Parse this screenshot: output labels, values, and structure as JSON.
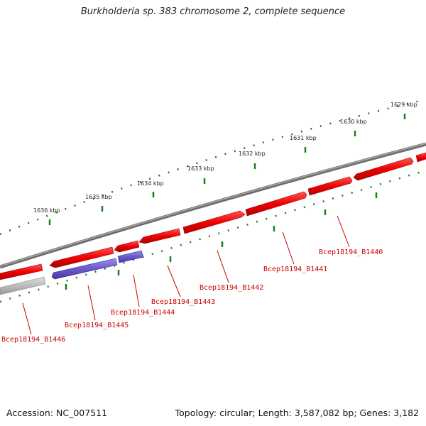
{
  "title": "Burkholderia sp. 383 chromosome 2, complete sequence",
  "footer": {
    "accession": "Accession: NC_007511",
    "summary": "Topology: circular; Length: 3,587,082 bp; Genes: 3,182"
  },
  "colors": {
    "backbone": "#808080",
    "forward_gene": "#ee1111",
    "reverse_gene": "#6a5acd",
    "gray_gene": "#b8b8b8",
    "tick": "#1a7f1a",
    "gene_label": "#cc0000"
  },
  "scale_ticks": [
    {
      "label": "1636 kbp"
    },
    {
      "label": "1635 kbp"
    },
    {
      "label": "1634 kbp"
    },
    {
      "label": "1633 kbp"
    },
    {
      "label": "1632 kbp"
    },
    {
      "label": "1631 kbp"
    },
    {
      "label": "1630 kbp"
    },
    {
      "label": "1629 kbp"
    }
  ],
  "gene_labels": [
    {
      "name": "Bcep18194_B1440"
    },
    {
      "name": "Bcep18194_B1441"
    },
    {
      "name": "Bcep18194_B1442"
    },
    {
      "name": "Bcep18194_B1443"
    },
    {
      "name": "Bcep18194_B1444"
    },
    {
      "name": "Bcep18194_B1445"
    },
    {
      "name": "Bcep18194_B1446"
    }
  ]
}
